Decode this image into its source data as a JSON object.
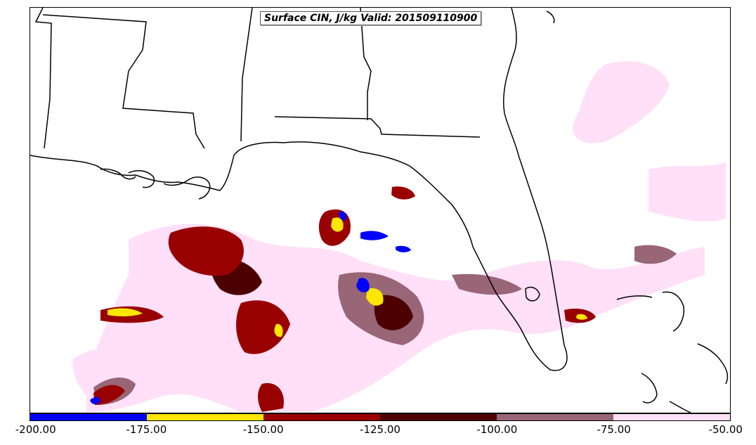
{
  "title": "Surface CIN, J/kg Valid: 201509110900",
  "legend": {
    "bins": [
      {
        "from": -200,
        "to": -175,
        "color": "#0000ff"
      },
      {
        "from": -175,
        "to": -150,
        "color": "#ffe600"
      },
      {
        "from": -150,
        "to": -125,
        "color": "#990000"
      },
      {
        "from": -125,
        "to": -100,
        "color": "#4d0000"
      },
      {
        "from": -100,
        "to": -75,
        "color": "#996677"
      },
      {
        "from": -75,
        "to": -50,
        "color": "#ffe0f8"
      }
    ],
    "tick_labels": [
      "-200.00",
      "-175.00",
      "-150.00",
      "-125.00",
      "-100.00",
      "-75.00",
      "-50.00"
    ]
  },
  "map": {
    "region": "Gulf of Mexico and Florida",
    "boundaries": "US state boundaries and coastlines"
  }
}
